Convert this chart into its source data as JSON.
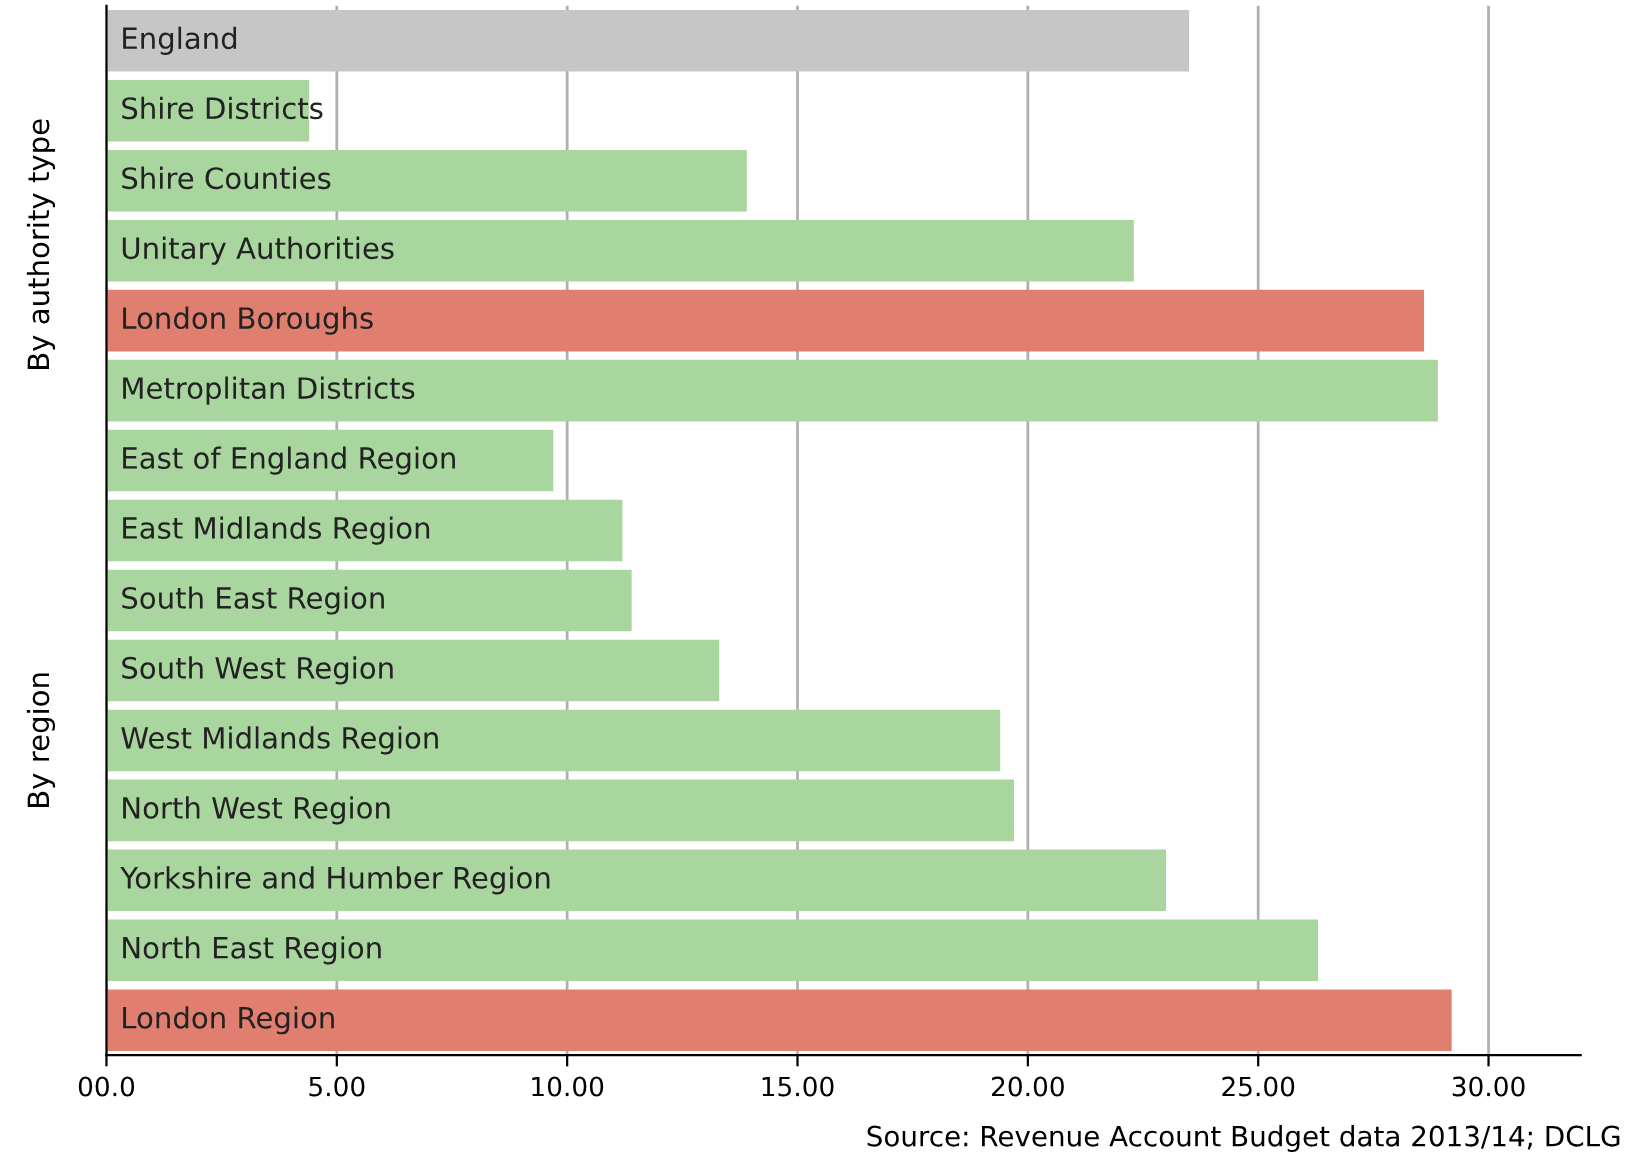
{
  "chart_data": {
    "type": "bar",
    "orientation": "horizontal",
    "categories": [
      "England",
      "Shire Districts",
      "Shire Counties",
      "Unitary Authorities",
      "London Boroughs",
      "Metroplitan Districts",
      "East of England Region",
      "East Midlands Region",
      "South East Region",
      "South West Region",
      "West Midlands Region",
      "North West Region",
      "Yorkshire and Humber Region",
      "North East Region",
      "London Region"
    ],
    "values": [
      23.5,
      4.4,
      13.9,
      22.3,
      28.6,
      28.9,
      9.7,
      11.2,
      11.4,
      13.3,
      19.4,
      19.7,
      23.0,
      26.3,
      29.2
    ],
    "colors": [
      "#c6c6c6",
      "#a9d59f",
      "#a9d59f",
      "#a9d59f",
      "#e07f6f",
      "#a9d59f",
      "#a9d59f",
      "#a9d59f",
      "#a9d59f",
      "#a9d59f",
      "#a9d59f",
      "#a9d59f",
      "#a9d59f",
      "#a9d59f",
      "#e07f6f"
    ],
    "xlim": [
      0,
      32
    ],
    "xticks": [
      {
        "value": 0,
        "label": "00.0"
      },
      {
        "value": 5,
        "label": "5.00"
      },
      {
        "value": 10,
        "label": "10.00"
      },
      {
        "value": 15,
        "label": "15.00"
      },
      {
        "value": 20,
        "label": "20.00"
      },
      {
        "value": 25,
        "label": "25.00"
      },
      {
        "value": 30,
        "label": "30.00"
      }
    ],
    "grid": "x",
    "tick_labels": "x",
    "annotations": [
      "By authority type",
      "By region",
      "Source: Revenue Account Budget data 2013/14; DCLG"
    ]
  }
}
